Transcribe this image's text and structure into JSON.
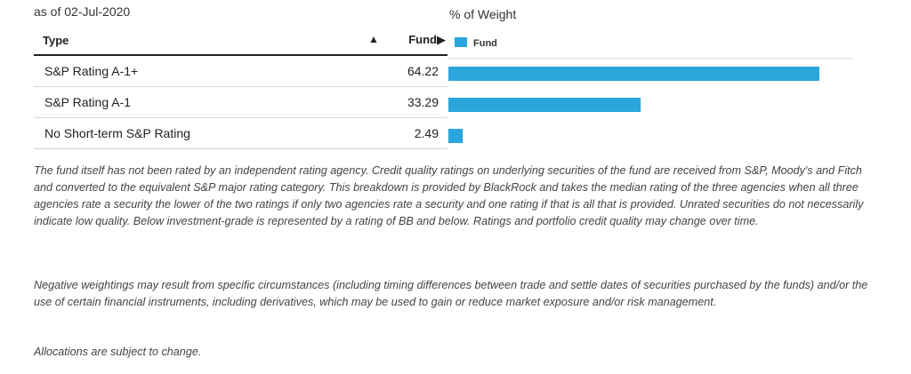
{
  "as_of": "as of 02-Jul-2020",
  "chart_title": "% of Weight",
  "table": {
    "col_type": "Type",
    "sort_arrow": "▲",
    "col_fund": "Fund▶"
  },
  "legend": {
    "label": "Fund",
    "color": "#2aa6dc"
  },
  "chart_data": {
    "type": "bar",
    "orientation": "horizontal",
    "categories": [
      "S&P Rating A-1+",
      "S&P Rating A-1",
      "No Short-term S&P Rating"
    ],
    "series": [
      {
        "name": "Fund",
        "values": [
          64.22,
          33.29,
          2.49
        ]
      }
    ],
    "value_labels": [
      "64.22",
      "33.29",
      "2.49"
    ],
    "xlim": [
      0,
      70
    ],
    "grid": false,
    "legend_position": "top-left"
  },
  "notes": {
    "note1": "The fund itself has not been rated by an independent rating agency. Credit quality ratings on underlying securities of the fund are received from S&P, Moody's and Fitch and converted to the equivalent S&P major rating category. This breakdown is provided by BlackRock and takes the median rating of the three agencies when all three agencies rate a security the lower of the two ratings if only two agencies rate a security and one rating if that is all that is provided. Unrated securities do not necessarily indicate low quality. Below investment-grade is represented by a rating of BB and below. Ratings and portfolio credit quality may change over time.",
    "note2": "Negative weightings may result from specific circumstances (including timing differences between trade and settle dates of securities purchased by the funds) and/or the use of certain financial instruments, including derivatives, which may be used to gain or reduce market exposure and/or risk management.",
    "note3": "Allocations are subject to change."
  }
}
